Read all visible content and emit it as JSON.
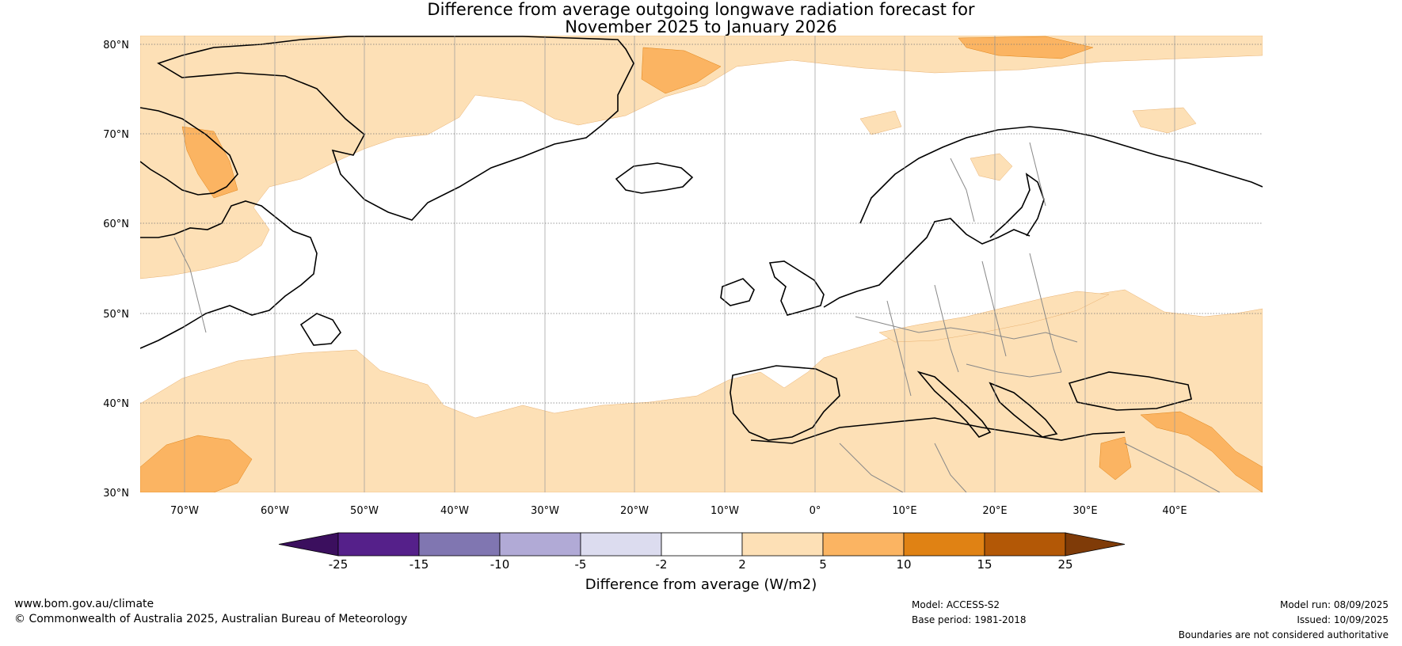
{
  "title": {
    "line1": "Difference from average outgoing longwave radiation forecast for",
    "line2": "November 2025 to January 2026"
  },
  "map": {
    "lat_labels": [
      "80°N",
      "70°N",
      "60°N",
      "50°N",
      "40°N",
      "30°N"
    ],
    "lon_labels": [
      "70°W",
      "60°W",
      "50°W",
      "40°W",
      "30°W",
      "20°W",
      "10°W",
      "0°",
      "10°E",
      "20°E",
      "30°E",
      "40°E"
    ],
    "colors": {
      "land_outline": "#000000",
      "border": "#888888",
      "grid": "#999999",
      "anom_light": "#fde0b6",
      "anom_mid": "#fbb462"
    }
  },
  "colorbar": {
    "labels": [
      "-25",
      "-15",
      "-10",
      "-5",
      "-2",
      "2",
      "5",
      "10",
      "15",
      "25"
    ],
    "colors": [
      "#3b0f5e",
      "#55208a",
      "#8076b1",
      "#b1aad6",
      "#dcdcef",
      "#ffffff",
      "#fde0b6",
      "#fbb462",
      "#e08214",
      "#b35806",
      "#7f3b08"
    ],
    "title": "Difference from average (W/m2)"
  },
  "footer": {
    "url": "www.bom.gov.au/climate",
    "copyright": "© Commonwealth of Australia 2025, Australian Bureau of Meteorology",
    "model": "Model: ACCESS-S2",
    "base_period": "Base period: 1981-2018",
    "model_run": "Model run: 08/09/2025",
    "issued": "Issued: 10/09/2025",
    "disclaimer": "Boundaries are not considered authoritative"
  }
}
